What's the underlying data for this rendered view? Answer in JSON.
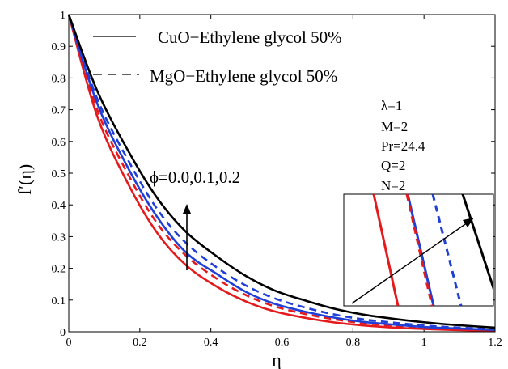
{
  "chart_data": {
    "type": "line",
    "xlabel": "η",
    "ylabel": "f′(η)",
    "xlim": [
      0,
      1.2
    ],
    "ylim": [
      0,
      1
    ],
    "x_ticks": [
      "0",
      "0.2",
      "0.4",
      "0.6",
      "0.8",
      "1",
      "1.2"
    ],
    "y_ticks": [
      "0",
      "0.1",
      "0.2",
      "0.3",
      "0.4",
      "0.5",
      "0.6",
      "0.7",
      "0.8",
      "0.9",
      "1"
    ],
    "grid": false,
    "legend_position": "top-left",
    "legend": [
      {
        "label": "CuO−Ethylene glycol 50%",
        "style": "solid"
      },
      {
        "label": "MgO−Ethylene glycol 50%",
        "style": "dashed"
      }
    ],
    "parameters": [
      "λ=1",
      "M=2",
      "Pr=24.4",
      "Q=2",
      "N=2"
    ],
    "annotation": "ϕ=0.0,0.1,0.2",
    "x": [
      0,
      0.08,
      0.17,
      0.25,
      0.33,
      0.42,
      0.5,
      0.58,
      0.67,
      0.75,
      0.83,
      0.92,
      1.0,
      1.08,
      1.2
    ],
    "series": [
      {
        "style": "solid",
        "color": "#e41a1c",
        "values": [
          1,
          0.68,
          0.46,
          0.31,
          0.21,
          0.14,
          0.095,
          0.064,
          0.043,
          0.029,
          0.02,
          0.013,
          0.009,
          0.006,
          0.003
        ]
      },
      {
        "style": "dashed",
        "color": "#e41a1c",
        "values": [
          1,
          0.7,
          0.49,
          0.34,
          0.24,
          0.165,
          0.115,
          0.08,
          0.055,
          0.039,
          0.027,
          0.019,
          0.013,
          0.009,
          0.005
        ]
      },
      {
        "style": "solid",
        "color": "#1f3fd6",
        "values": [
          1,
          0.72,
          0.51,
          0.36,
          0.25,
          0.18,
          0.125,
          0.088,
          0.062,
          0.044,
          0.031,
          0.022,
          0.015,
          0.011,
          0.006
        ]
      },
      {
        "style": "dashed",
        "color": "#1f3fd6",
        "values": [
          1,
          0.735,
          0.535,
          0.385,
          0.28,
          0.2,
          0.145,
          0.105,
          0.075,
          0.054,
          0.039,
          0.028,
          0.02,
          0.014,
          0.008
        ]
      },
      {
        "style": "solid",
        "color": "#000000",
        "values": [
          1,
          0.76,
          0.565,
          0.42,
          0.315,
          0.235,
          0.175,
          0.13,
          0.097,
          0.072,
          0.054,
          0.04,
          0.03,
          0.022,
          0.013
        ]
      }
    ],
    "inset": {
      "lines": [
        {
          "style": "solid",
          "color": "#e41a1c"
        },
        {
          "style": "solid",
          "color": "#1f3fd6"
        },
        {
          "style": "dashed",
          "color": "#e41a1c"
        },
        {
          "style": "dashed",
          "color": "#1f3fd6"
        },
        {
          "style": "solid",
          "color": "#000000"
        }
      ]
    }
  }
}
